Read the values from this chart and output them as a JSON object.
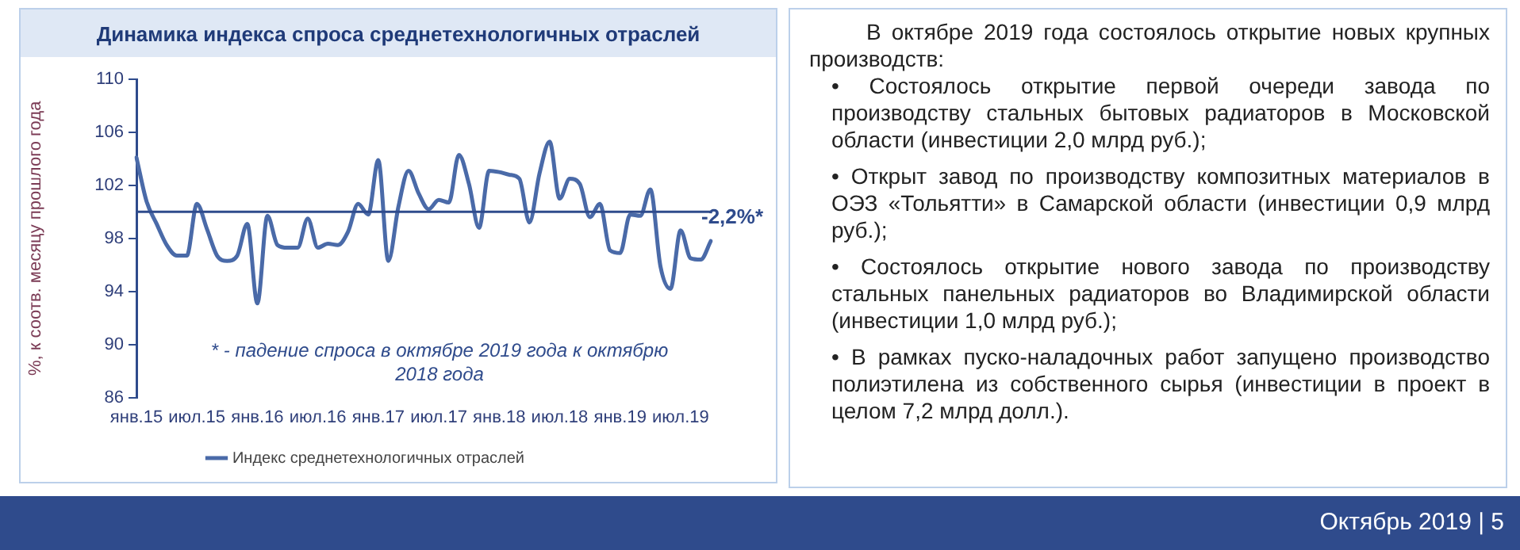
{
  "chart_data": {
    "type": "line",
    "title": "Динамика индекса спроса среднетехнологичных отраслей",
    "ylabel": "%, к соотв. месяцу прошлого года",
    "categories": [
      "янв.15",
      null,
      null,
      null,
      null,
      null,
      "июл.15",
      null,
      null,
      null,
      null,
      null,
      "янв.16",
      null,
      null,
      null,
      null,
      null,
      "июл.16",
      null,
      null,
      null,
      null,
      null,
      "янв.17",
      null,
      null,
      null,
      null,
      null,
      "июл.17",
      null,
      null,
      null,
      null,
      null,
      "янв.18",
      null,
      null,
      null,
      null,
      null,
      "июл.18",
      null,
      null,
      null,
      null,
      null,
      "янв.19",
      null,
      null,
      null,
      null,
      null,
      "июл.19",
      null,
      null,
      null
    ],
    "series": [
      {
        "name": "Индекс среднетехнологичных отраслей",
        "color": "#4a6aa8",
        "values": [
          104.1,
          100.8,
          99.1,
          97.5,
          96.7,
          96.7,
          100.6,
          98.7,
          96.7,
          96.3,
          96.7,
          99.1,
          93.1,
          99.7,
          97.5,
          97.3,
          97.3,
          99.5,
          97.3,
          97.6,
          97.5,
          98.5,
          100.6,
          99.8,
          103.9,
          96.3,
          100.4,
          103.1,
          101.4,
          100.2,
          100.9,
          100.7,
          104.3,
          102.1,
          98.8,
          103.1,
          103.0,
          102.8,
          102.5,
          99.2,
          102.9,
          105.3,
          101.0,
          102.5,
          102.1,
          99.6,
          100.6,
          97.1,
          96.9,
          99.8,
          99.7,
          101.7,
          95.9,
          94.2,
          98.6,
          96.5,
          96.4,
          97.8
        ]
      }
    ],
    "ylim": [
      86,
      110
    ],
    "yticks": [
      86,
      90,
      94,
      98,
      102,
      106,
      110
    ],
    "ref_lines": [
      {
        "axis": "y",
        "value": 100,
        "color": "#2f4b8c"
      }
    ],
    "grid": false,
    "legend": "bottom",
    "annotations": [
      "-2,2%*",
      "* - падение спроса в октябре 2019 года к октябрю 2018 года",
      "В октябре 2019 года состоялось открытие новых крупных производств:",
      "• Состоялось открытие первой очереди завода по производству стальных бытовых радиаторов в Московской области (инвестиции 2,0 млрд руб.);",
      "• Открыт завод по производству композитных материалов в ОЭЗ «Тольятти» в Самарской области (инвестиции 0,9 млрд руб.);",
      "• Состоялось открытие нового завода по производству стальных панельных радиаторов во Владимирской области (инвестиции 1,0 млрд руб.);",
      "• В рамках пуско-наладочных работ запущено производство полиэтилена из собственного сырья (инвестиции в проект в целом 7,2 млрд долл.).",
      "Октябрь 2019 | 5"
    ]
  }
}
